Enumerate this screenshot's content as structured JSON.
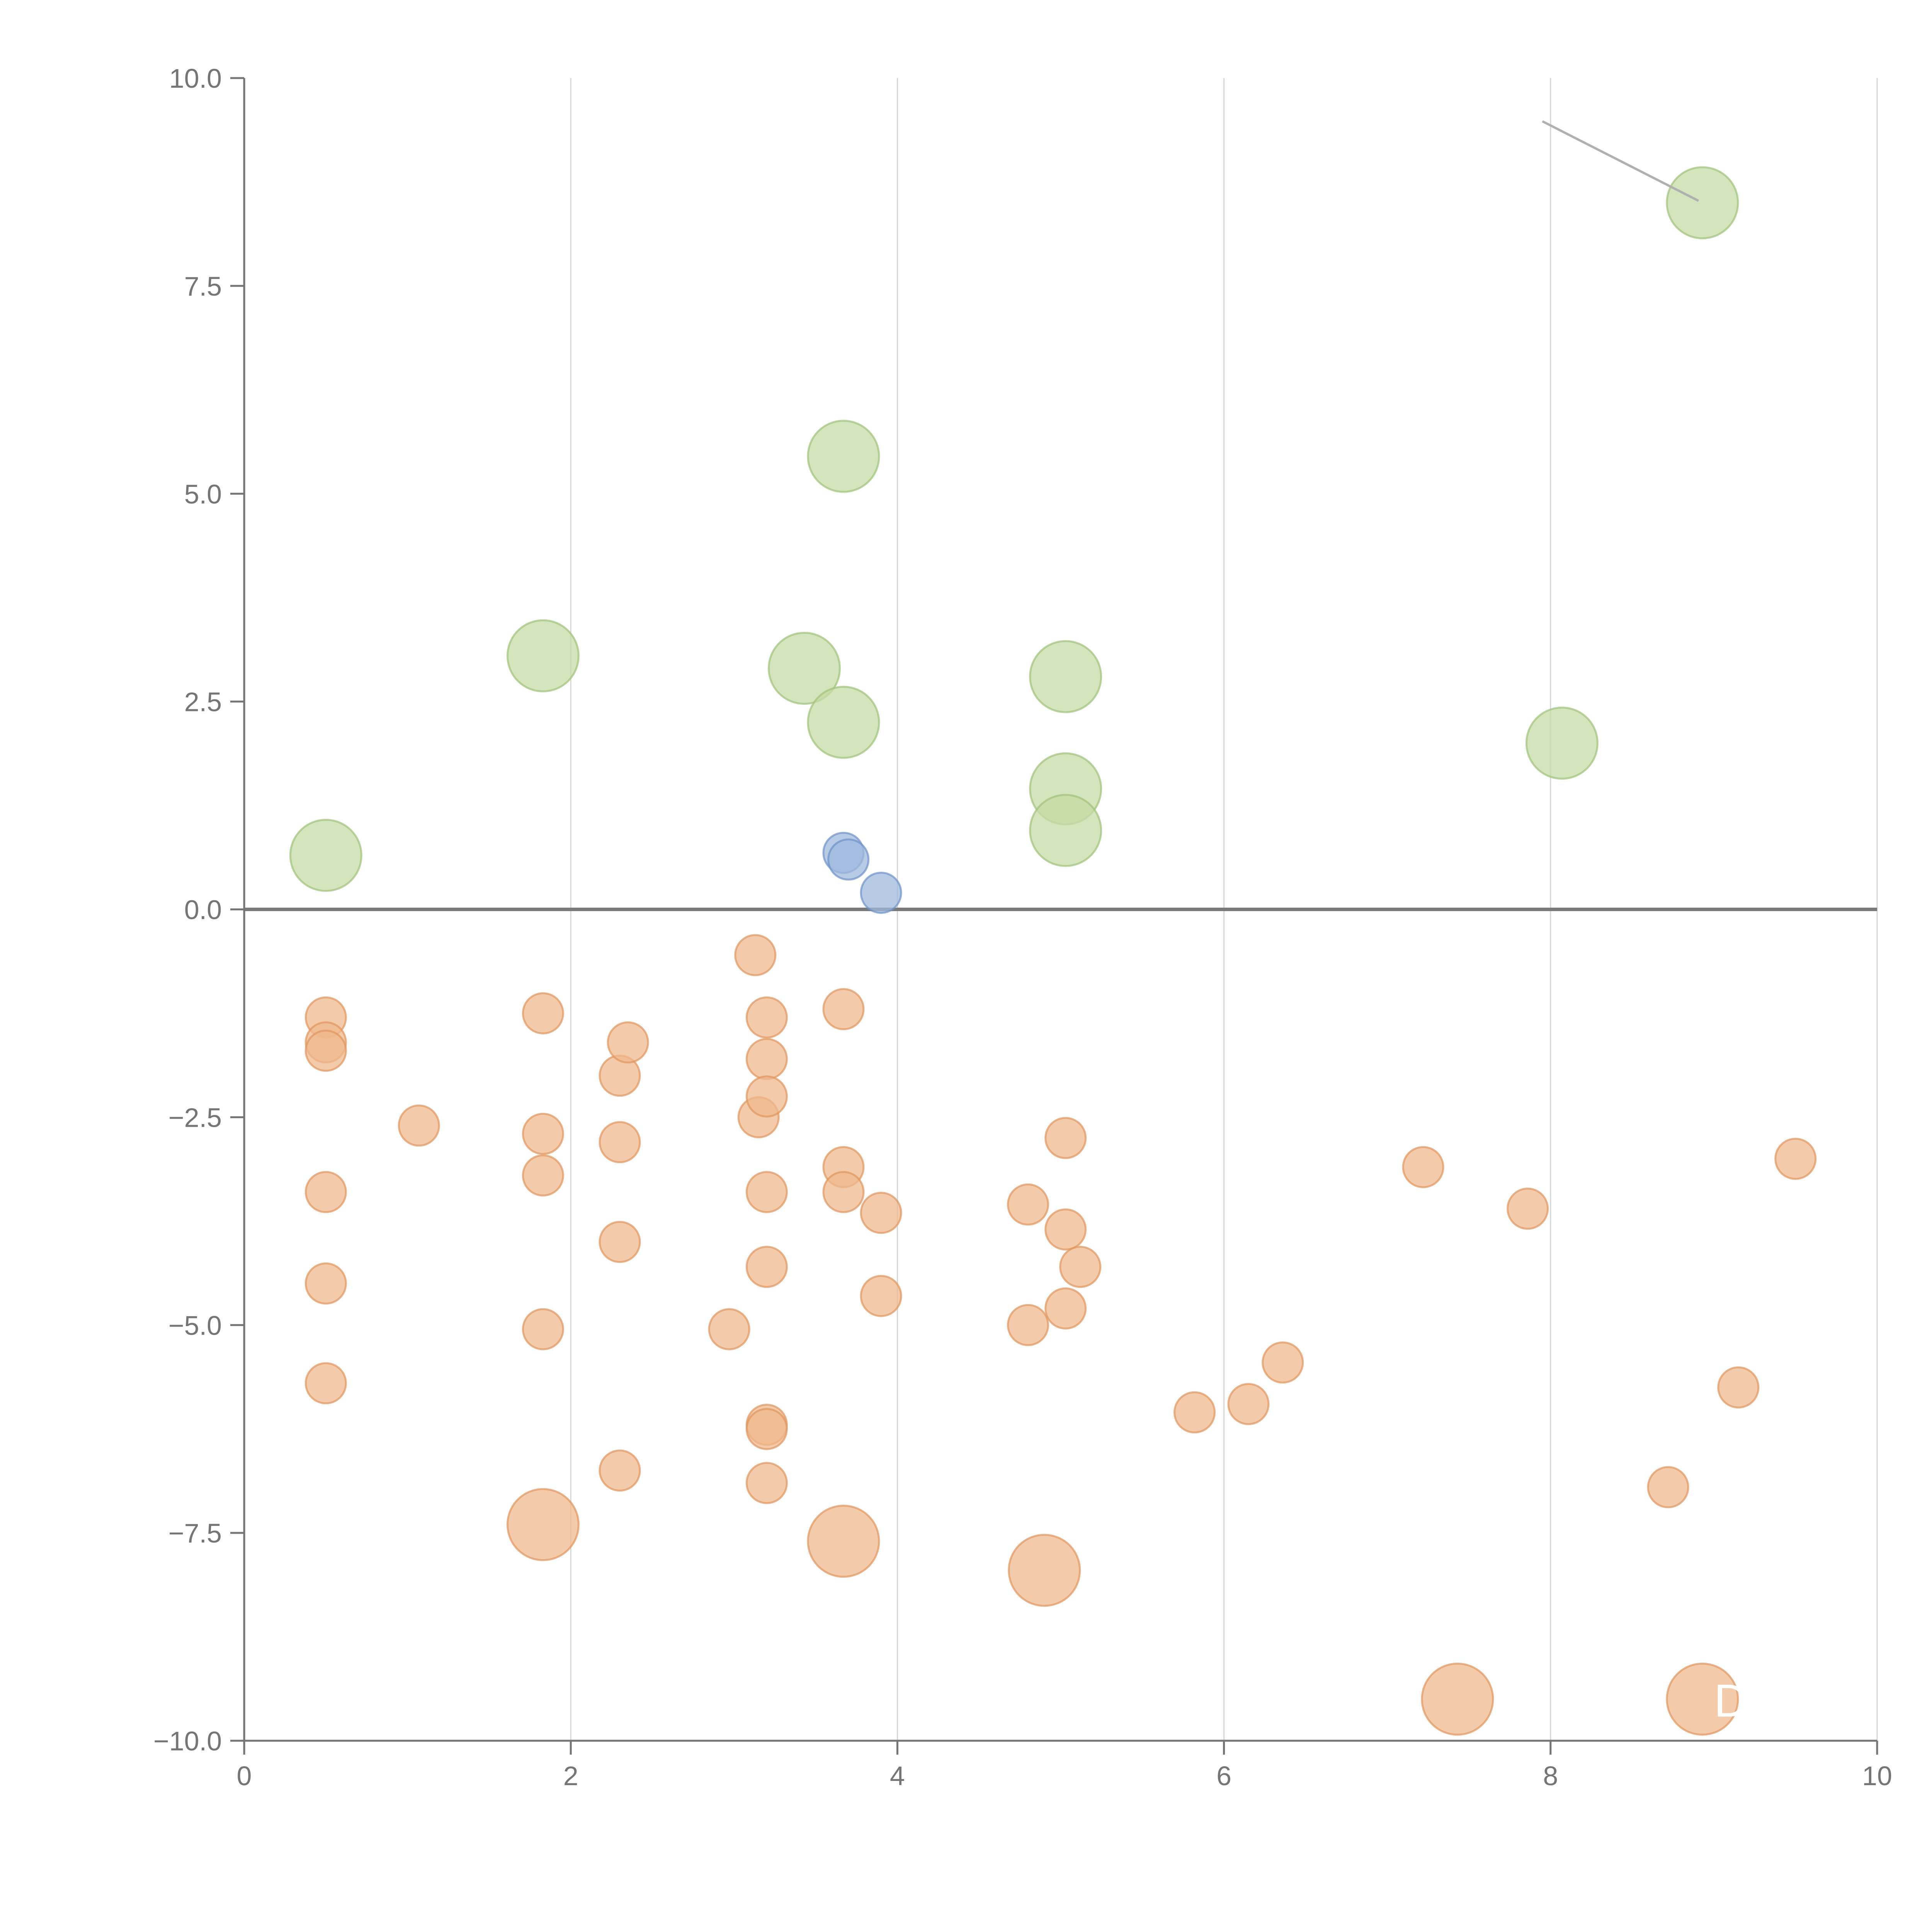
{
  "chart_data": {
    "type": "scatter",
    "title": "",
    "xlabel": "",
    "ylabel": "",
    "xlim": [
      0,
      10
    ],
    "ylim": [
      -10,
      10
    ],
    "x_ticks": [
      0,
      2,
      4,
      6,
      8,
      10
    ],
    "x_tick_labels": [
      "0",
      "2",
      "4",
      "6",
      "8",
      "10"
    ],
    "y_ticks": [
      10,
      7.5,
      5,
      2.5,
      0,
      -2.5,
      -5,
      -7.5,
      -10
    ],
    "y_tick_labels": [
      "10.0",
      "7.5",
      "5.0",
      "2.5",
      "0.0",
      "−2.5",
      "−5.0",
      "−7.5",
      "−10.0"
    ],
    "grid": "vertical",
    "zero_line": true,
    "annotation_text": "D",
    "colors": {
      "orange_fill": "#efb88e",
      "orange_stroke": "#e0965e",
      "green_fill": "#c5dba6",
      "green_stroke": "#9fc27a",
      "blue_fill": "#9fb8de",
      "blue_stroke": "#6f91c7",
      "axis": "#757575",
      "grid": "#d6d6d6",
      "zero_line": "#7a7a7a",
      "leader": "#b0b0b0"
    },
    "series": [
      {
        "color": "orange",
        "points": [
          [
            0.5,
            -1.3,
            1
          ],
          [
            0.5,
            -1.6,
            1
          ],
          [
            0.5,
            -1.7,
            1
          ],
          [
            0.5,
            -3.4,
            1
          ],
          [
            0.5,
            -4.5,
            1
          ],
          [
            0.5,
            -5.7,
            1
          ],
          [
            1.07,
            -2.6,
            1
          ],
          [
            1.83,
            -1.25,
            1
          ],
          [
            1.83,
            -2.7,
            1
          ],
          [
            1.83,
            -3.2,
            1
          ],
          [
            1.83,
            -5.05,
            1
          ],
          [
            2.3,
            -2.0,
            1
          ],
          [
            2.35,
            -1.6,
            1
          ],
          [
            2.3,
            -2.8,
            1
          ],
          [
            2.3,
            -4.0,
            1
          ],
          [
            2.3,
            -6.75,
            1
          ],
          [
            2.97,
            -5.05,
            1
          ],
          [
            3.13,
            -0.55,
            1
          ],
          [
            3.15,
            -2.5,
            1
          ],
          [
            3.2,
            -1.3,
            1
          ],
          [
            3.2,
            -1.8,
            1
          ],
          [
            3.2,
            -2.25,
            1
          ],
          [
            3.2,
            -3.4,
            1
          ],
          [
            3.2,
            -4.3,
            1
          ],
          [
            3.2,
            -6.2,
            1
          ],
          [
            3.2,
            -6.25,
            1
          ],
          [
            3.2,
            -6.9,
            1
          ],
          [
            3.67,
            -1.2,
            1
          ],
          [
            3.67,
            -3.1,
            1
          ],
          [
            3.67,
            -3.4,
            1
          ],
          [
            3.9,
            -3.65,
            1
          ],
          [
            3.9,
            -4.65,
            1
          ],
          [
            4.8,
            -3.55,
            1
          ],
          [
            4.8,
            -5.0,
            1
          ],
          [
            5.03,
            -2.75,
            1
          ],
          [
            5.03,
            -3.85,
            1
          ],
          [
            5.03,
            -4.8,
            1
          ],
          [
            5.12,
            -4.3,
            1
          ],
          [
            5.82,
            -6.05,
            1
          ],
          [
            6.15,
            -5.95,
            1
          ],
          [
            6.36,
            -5.45,
            1
          ],
          [
            7.22,
            -3.1,
            1
          ],
          [
            7.86,
            -3.6,
            1
          ],
          [
            8.72,
            -6.95,
            1
          ],
          [
            9.15,
            -5.75,
            1
          ],
          [
            9.5,
            -3.0,
            1
          ],
          [
            1.83,
            -7.4,
            2
          ],
          [
            3.67,
            -7.6,
            2
          ],
          [
            4.9,
            -7.95,
            2
          ],
          [
            7.43,
            -9.5,
            2
          ],
          [
            8.93,
            -9.5,
            2
          ]
        ]
      },
      {
        "color": "green",
        "points": [
          [
            0.5,
            0.65,
            2
          ],
          [
            1.83,
            3.05,
            2
          ],
          [
            3.43,
            2.9,
            2
          ],
          [
            3.67,
            5.45,
            2
          ],
          [
            3.67,
            2.25,
            2
          ],
          [
            5.03,
            2.8,
            2
          ],
          [
            5.03,
            1.45,
            2
          ],
          [
            5.03,
            0.95,
            2
          ],
          [
            8.07,
            2.0,
            2
          ],
          [
            8.93,
            8.5,
            2
          ]
        ]
      },
      {
        "color": "blue",
        "points": [
          [
            3.67,
            0.68,
            1
          ],
          [
            3.7,
            0.6,
            1
          ],
          [
            3.9,
            0.2,
            1
          ]
        ]
      }
    ]
  }
}
